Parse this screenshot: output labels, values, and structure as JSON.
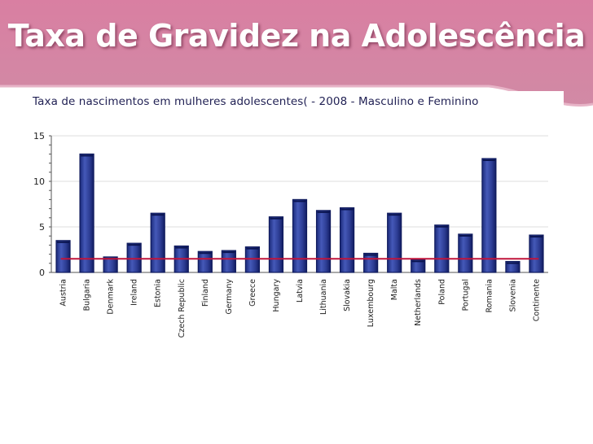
{
  "slide": {
    "title": "Taxa de Gravidez na Adolescência"
  },
  "colors": {
    "banner": "#d4829f",
    "bar": "#2d3d94",
    "bar_dark": "#0f1a5c",
    "reference_line": "#c0143c",
    "grid": "#dddddd"
  },
  "chart_data": {
    "type": "bar",
    "title": "Taxa de nascimentos em mulheres adolescentes( - 2008 - Masculino e Feminino",
    "xlabel": "",
    "ylabel": "",
    "ylim": [
      0,
      15
    ],
    "yticks": [
      0,
      5,
      10,
      15
    ],
    "grid": true,
    "categories": [
      "Austria",
      "Bulgaria",
      "Denmark",
      "Ireland",
      "Estonia",
      "Czech Republic",
      "Finland",
      "Germany",
      "Greece",
      "Hungary",
      "Latvia",
      "Lithuania",
      "Slovakia",
      "Luxembourg",
      "Malta",
      "Netherlands",
      "Poland",
      "Portugal",
      "Romania",
      "Slovenia",
      "Continente"
    ],
    "values": [
      3.5,
      13.0,
      1.7,
      3.2,
      6.5,
      2.9,
      2.3,
      2.4,
      2.8,
      6.1,
      8.0,
      6.8,
      7.1,
      2.1,
      6.5,
      1.4,
      5.2,
      4.2,
      12.5,
      1.2,
      4.1
    ],
    "reference_line": 1.5
  }
}
